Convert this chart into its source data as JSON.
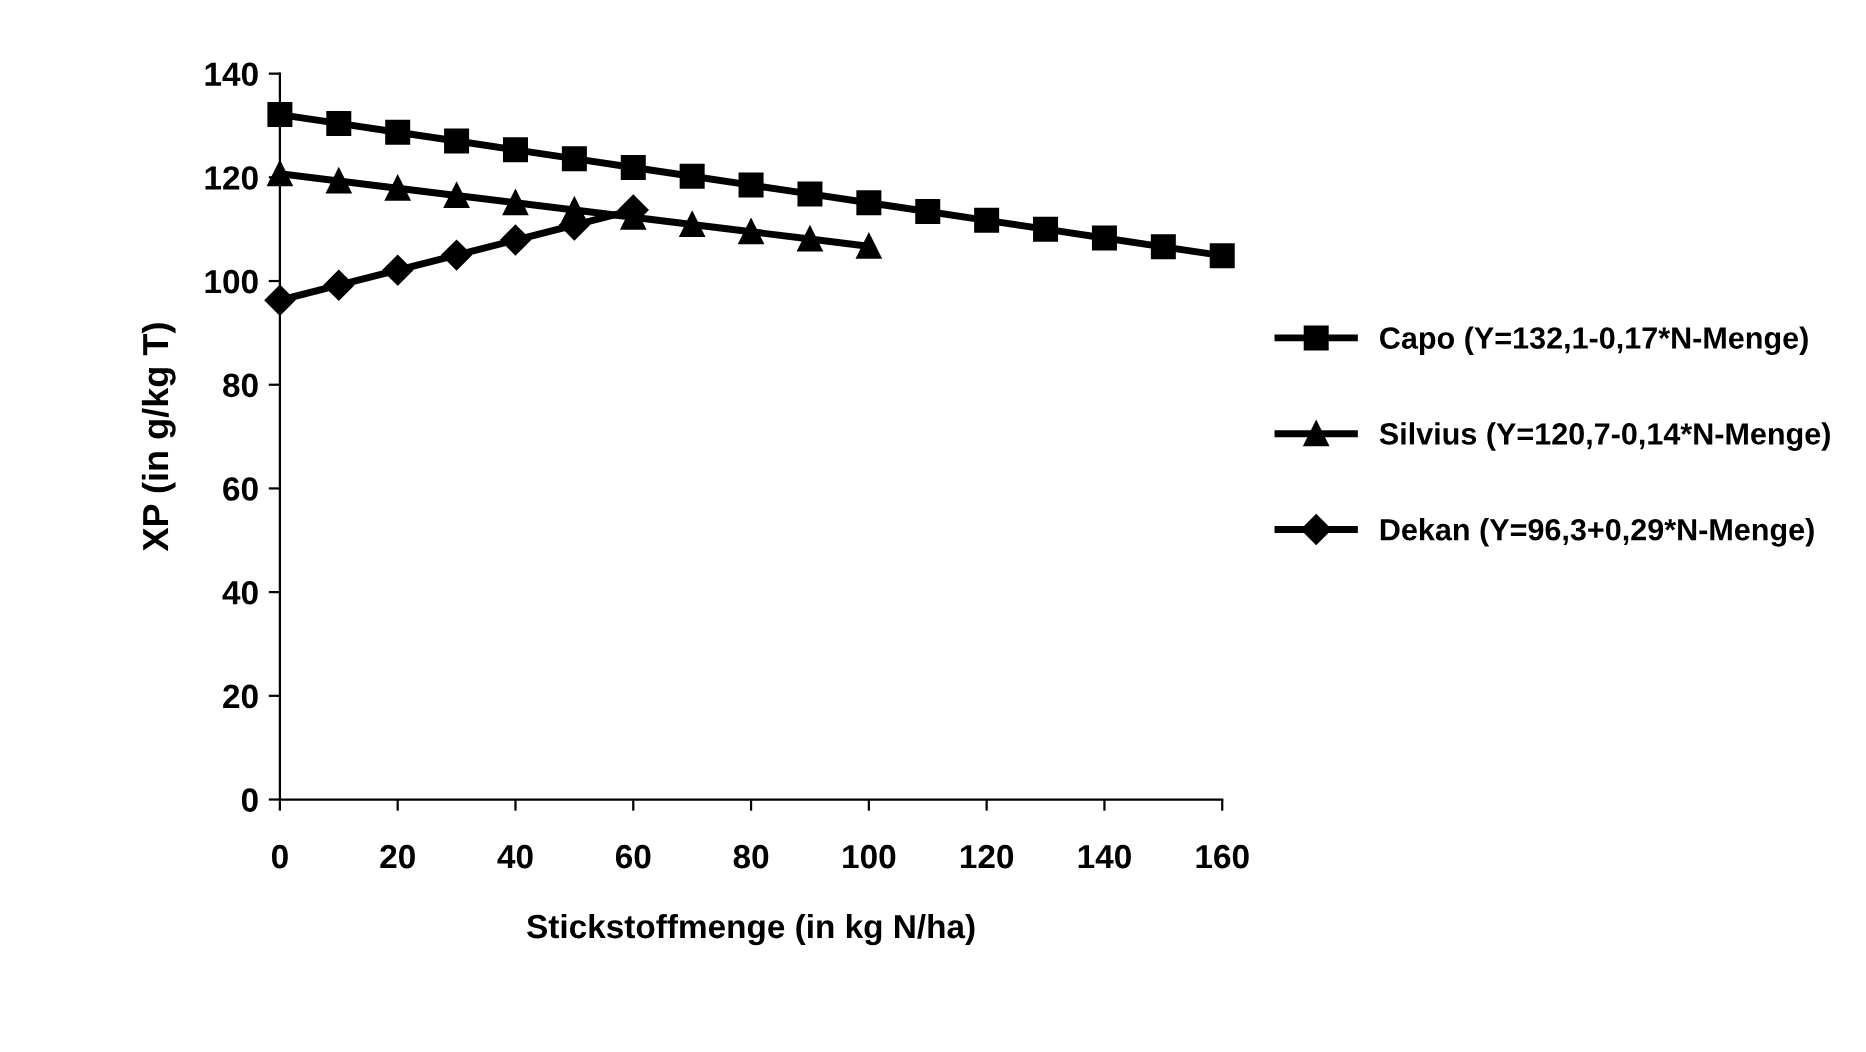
{
  "chart_data": {
    "type": "line",
    "xlabel": "Stickstoffmenge (in kg N/ha)",
    "ylabel": "XP (in g/kg T)",
    "xlim": [
      0,
      160
    ],
    "xticks": [
      0,
      20,
      40,
      60,
      80,
      100,
      120,
      140,
      160
    ],
    "ylim": [
      0,
      140
    ],
    "yticks": [
      0,
      20,
      40,
      60,
      80,
      100,
      120,
      140
    ],
    "grid": false,
    "legend": "right",
    "series": [
      {
        "name": "Capo (Y=132,1-0,17*N-Menge)",
        "color": "#000000",
        "marker": "square",
        "x": [
          0,
          10,
          20,
          30,
          40,
          50,
          60,
          70,
          80,
          90,
          100,
          110,
          120,
          130,
          140,
          150,
          160
        ],
        "values": [
          132.1,
          130.4,
          128.7,
          127.0,
          125.3,
          123.6,
          121.9,
          120.2,
          118.5,
          116.8,
          115.1,
          113.4,
          111.7,
          110.0,
          108.3,
          106.6,
          104.9
        ]
      },
      {
        "name": "Silvius (Y=120,7-0,14*N-Menge)",
        "color": "#000000",
        "marker": "triangle",
        "x": [
          0,
          10,
          20,
          30,
          40,
          50,
          60,
          70,
          80,
          90,
          100
        ],
        "values": [
          120.7,
          119.3,
          117.9,
          116.5,
          115.1,
          113.7,
          112.3,
          110.9,
          109.5,
          108.1,
          106.7
        ]
      },
      {
        "name": "Dekan (Y=96,3+0,29*N-Menge)",
        "color": "#000000",
        "marker": "diamond",
        "x": [
          0,
          10,
          20,
          30,
          40,
          50,
          60
        ],
        "values": [
          96.3,
          99.2,
          102.1,
          105.0,
          107.9,
          110.8,
          113.7
        ]
      }
    ]
  }
}
